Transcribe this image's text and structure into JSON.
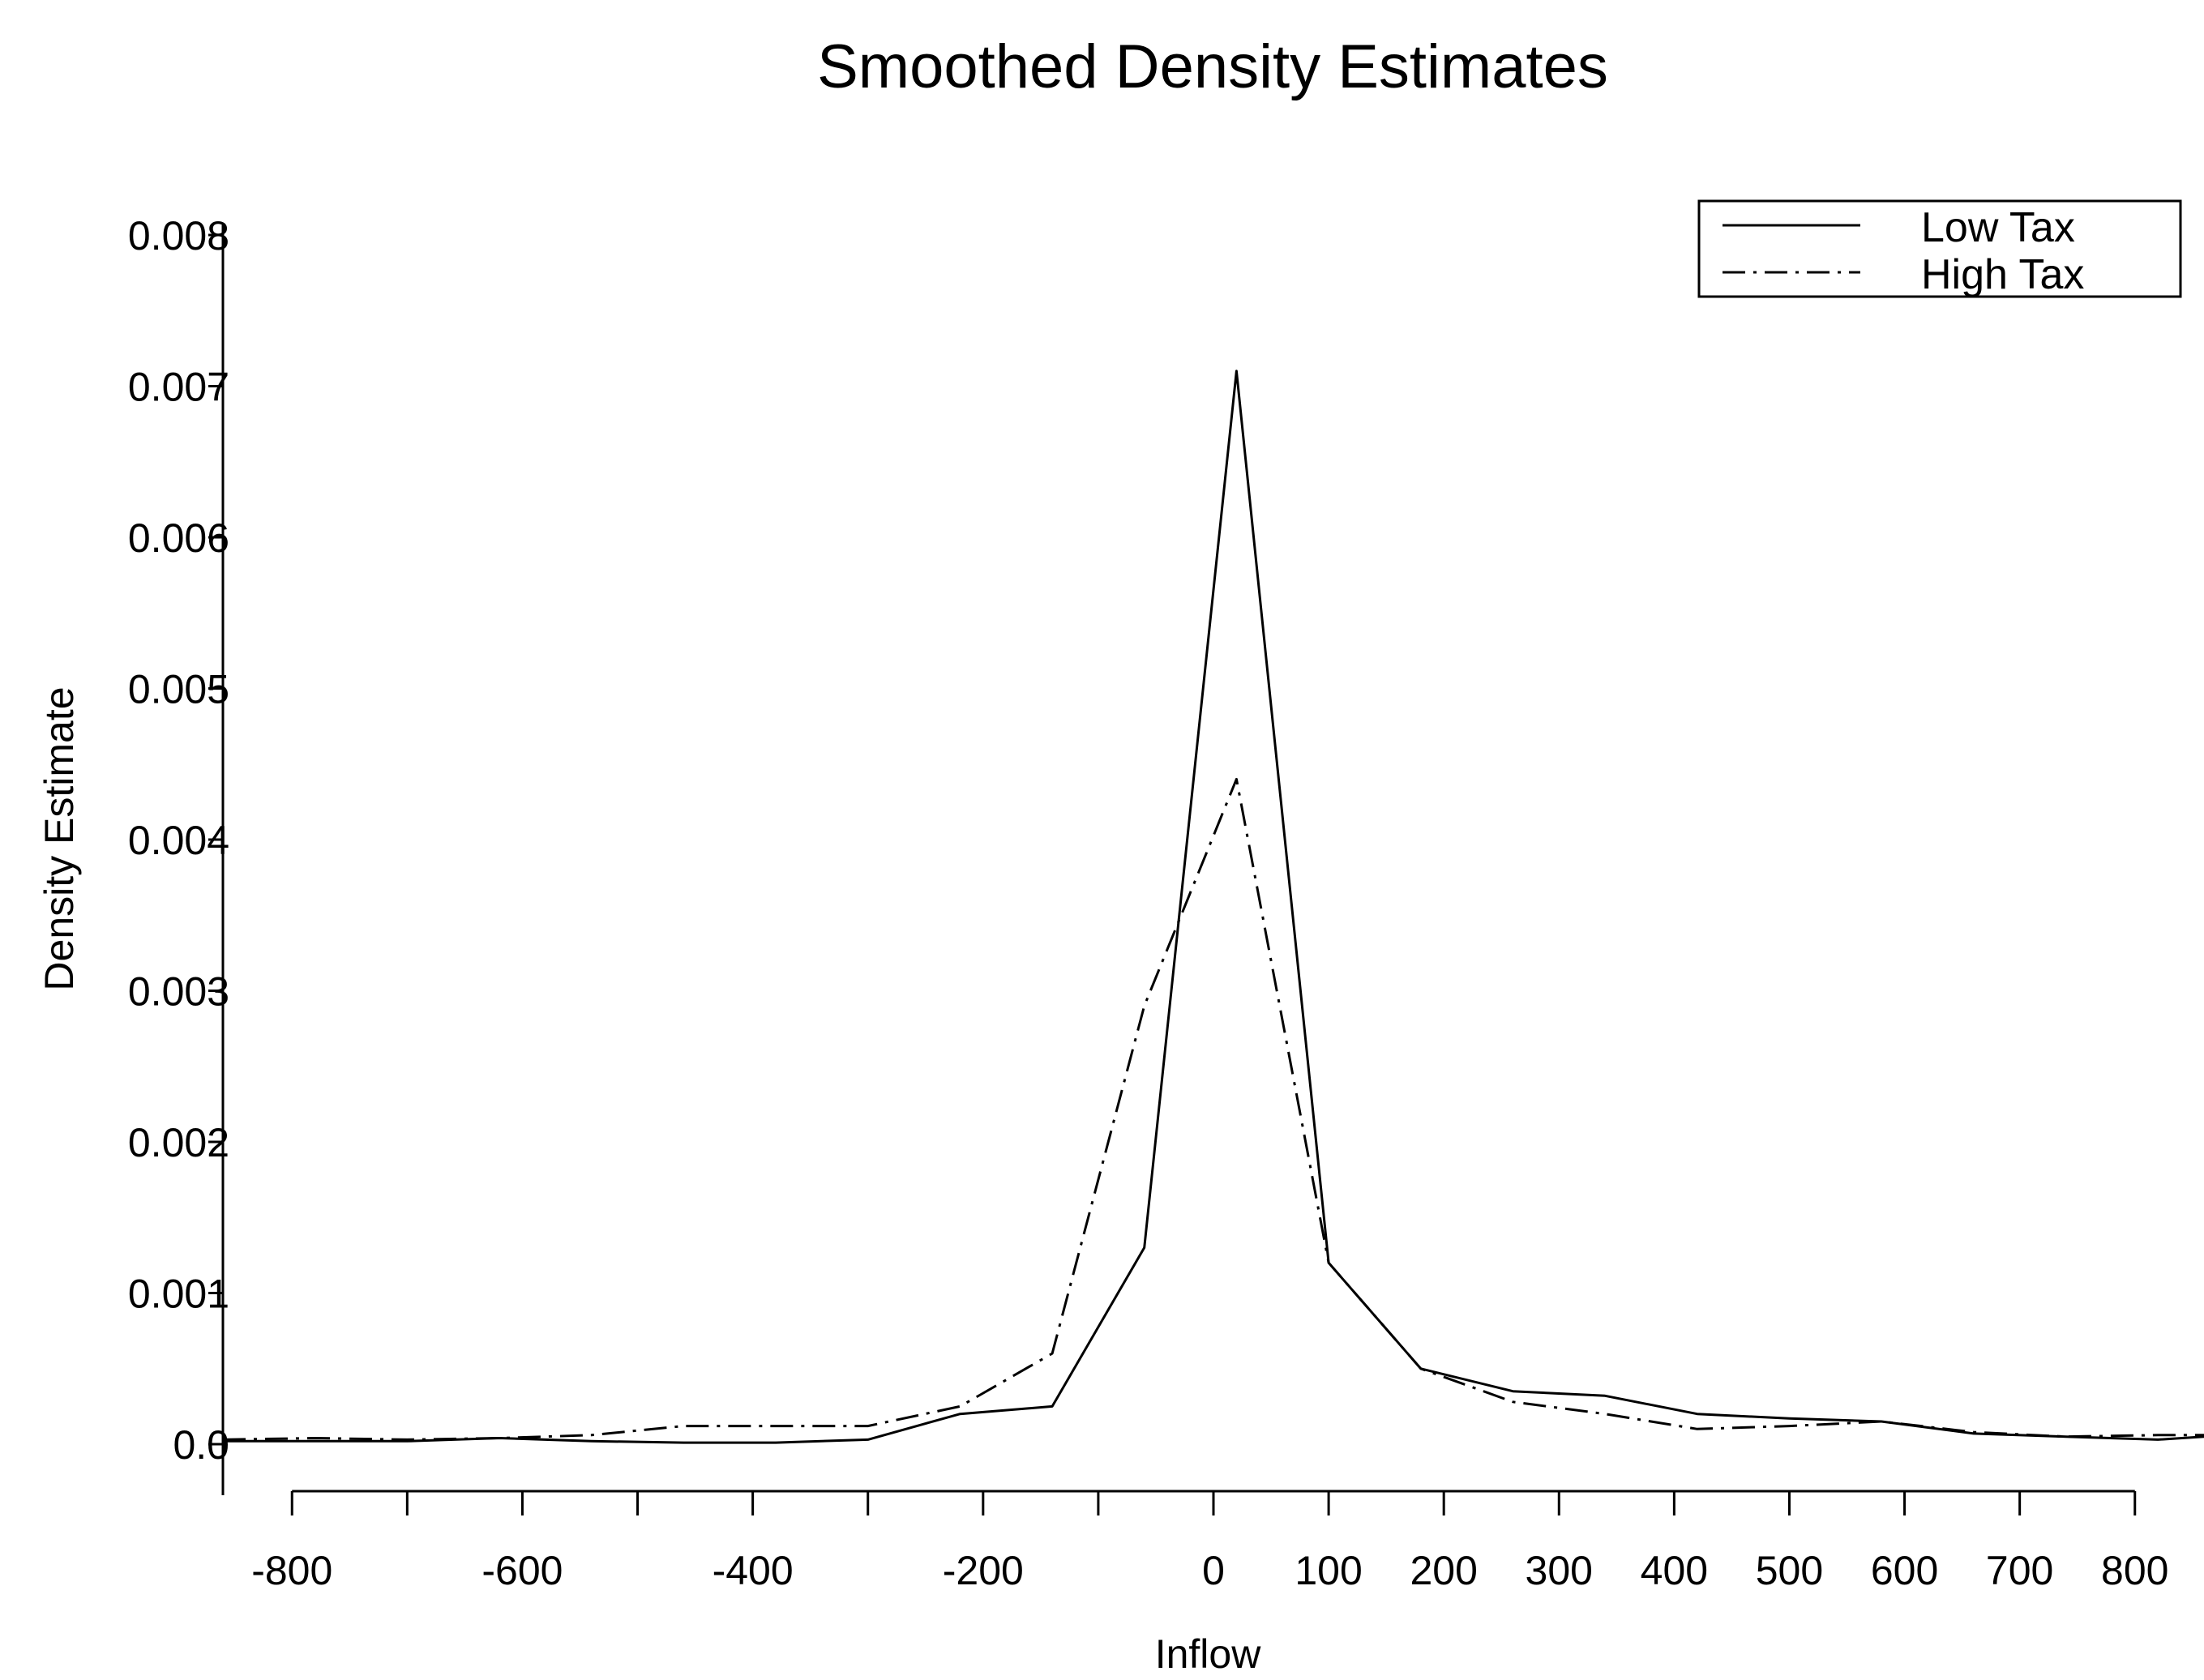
{
  "chart_data": {
    "type": "line",
    "title": "Smoothed Density Estimates",
    "xlabel": "Inflow",
    "ylabel": "Density Estimate",
    "xlim": [
      -860,
      860
    ],
    "ylim": [
      0,
      0.008
    ],
    "x_ticks": [
      "-800",
      "-600",
      "-400",
      "-200",
      "0",
      "100",
      "200",
      "300",
      "400",
      "500",
      "600",
      "700",
      "800"
    ],
    "x_tick_values": [
      -800,
      -600,
      -400,
      -200,
      0,
      100,
      200,
      300,
      400,
      500,
      600,
      700,
      800
    ],
    "x_minor_ticks": [
      -700,
      -500,
      -300,
      -100
    ],
    "y_ticks": [
      "0.0",
      "0.001",
      "0.002",
      "0.003",
      "0.004",
      "0.005",
      "0.006",
      "0.007",
      "0.008"
    ],
    "y_tick_values": [
      0,
      0.001,
      0.002,
      0.003,
      0.004,
      0.005,
      0.006,
      0.007,
      0.008
    ],
    "grid": false,
    "legend_position": "top-right",
    "series": [
      {
        "name": "Low Tax",
        "style": "solid",
        "color": "#000000",
        "x": [
          -860,
          -780,
          -700,
          -620,
          -540,
          -460,
          -380,
          -300,
          -220,
          -140,
          -60,
          20,
          100,
          180,
          260,
          340,
          420,
          500,
          580,
          660,
          740,
          820,
          860
        ],
        "y": [
          2e-05,
          2e-05,
          2e-05,
          4e-05,
          2e-05,
          1e-05,
          1e-05,
          3e-05,
          0.0002,
          0.00025,
          0.0013,
          0.0071,
          0.0012,
          0.0005,
          0.00035,
          0.00032,
          0.0002,
          0.00017,
          0.00015,
          7e-05,
          5e-05,
          3e-05,
          5e-05
        ]
      },
      {
        "name": "High Tax",
        "style": "dashdot",
        "color": "#000000",
        "x": [
          -860,
          -780,
          -700,
          -620,
          -540,
          -460,
          -380,
          -300,
          -220,
          -140,
          -60,
          20,
          100,
          180,
          260,
          340,
          420,
          500,
          580,
          660,
          740,
          820,
          860
        ],
        "y": [
          3e-05,
          4e-05,
          3e-05,
          4e-05,
          6e-05,
          0.00012,
          0.00012,
          0.00012,
          0.00025,
          0.0006,
          0.0029,
          0.0044,
          0.0012,
          0.0005,
          0.00028,
          0.0002,
          0.0001,
          0.00012,
          0.00015,
          8e-05,
          5e-05,
          6e-05,
          6e-05
        ]
      }
    ]
  }
}
